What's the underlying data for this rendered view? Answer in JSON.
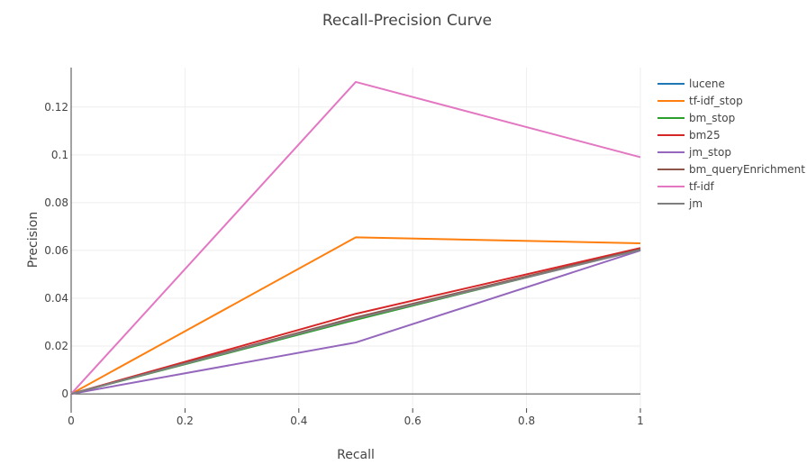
{
  "chart_data": {
    "type": "line",
    "title": "Recall-Precision Curve",
    "xlabel": "Recall",
    "ylabel": "Precision",
    "xlim": [
      0,
      1
    ],
    "ylim": [
      -0.006,
      0.1365
    ],
    "x_ticks": [
      0,
      0.2,
      0.4,
      0.6,
      0.8,
      1
    ],
    "x_tick_labels": [
      "0",
      "0.2",
      "0.4",
      "0.6",
      "0.8",
      "1"
    ],
    "y_ticks": [
      0,
      0.02,
      0.04,
      0.06,
      0.08,
      0.1,
      0.12
    ],
    "y_tick_labels": [
      "0",
      "0.02",
      "0.04",
      "0.06",
      "0.08",
      "0.1",
      "0.12"
    ],
    "grid": true,
    "legend_position": "right",
    "x": [
      0,
      0.5,
      1
    ],
    "series": [
      {
        "name": "lucene",
        "color": "#1f77b4",
        "values": [
          0,
          0.0315,
          0.0605
        ]
      },
      {
        "name": "tf-idf_stop",
        "color": "#ff7f0e",
        "values": [
          0,
          0.0655,
          0.063
        ]
      },
      {
        "name": "bm_stop",
        "color": "#2ca02c",
        "values": [
          0,
          0.031,
          0.0605
        ]
      },
      {
        "name": "bm25",
        "color": "#d62728",
        "values": [
          0,
          0.0335,
          0.061
        ]
      },
      {
        "name": "jm_stop",
        "color": "#9467bd",
        "values": [
          0,
          0.0215,
          0.06
        ]
      },
      {
        "name": "bm_queryEnrichment",
        "color": "#8c564b",
        "values": [
          0,
          0.032,
          0.0605
        ]
      },
      {
        "name": "tf-idf",
        "color": "#e377c2",
        "values": [
          0,
          0.1305,
          0.099
        ]
      },
      {
        "name": "jm",
        "color": "#7f7f7f",
        "values": [
          0,
          0.0315,
          0.0602
        ]
      }
    ]
  }
}
